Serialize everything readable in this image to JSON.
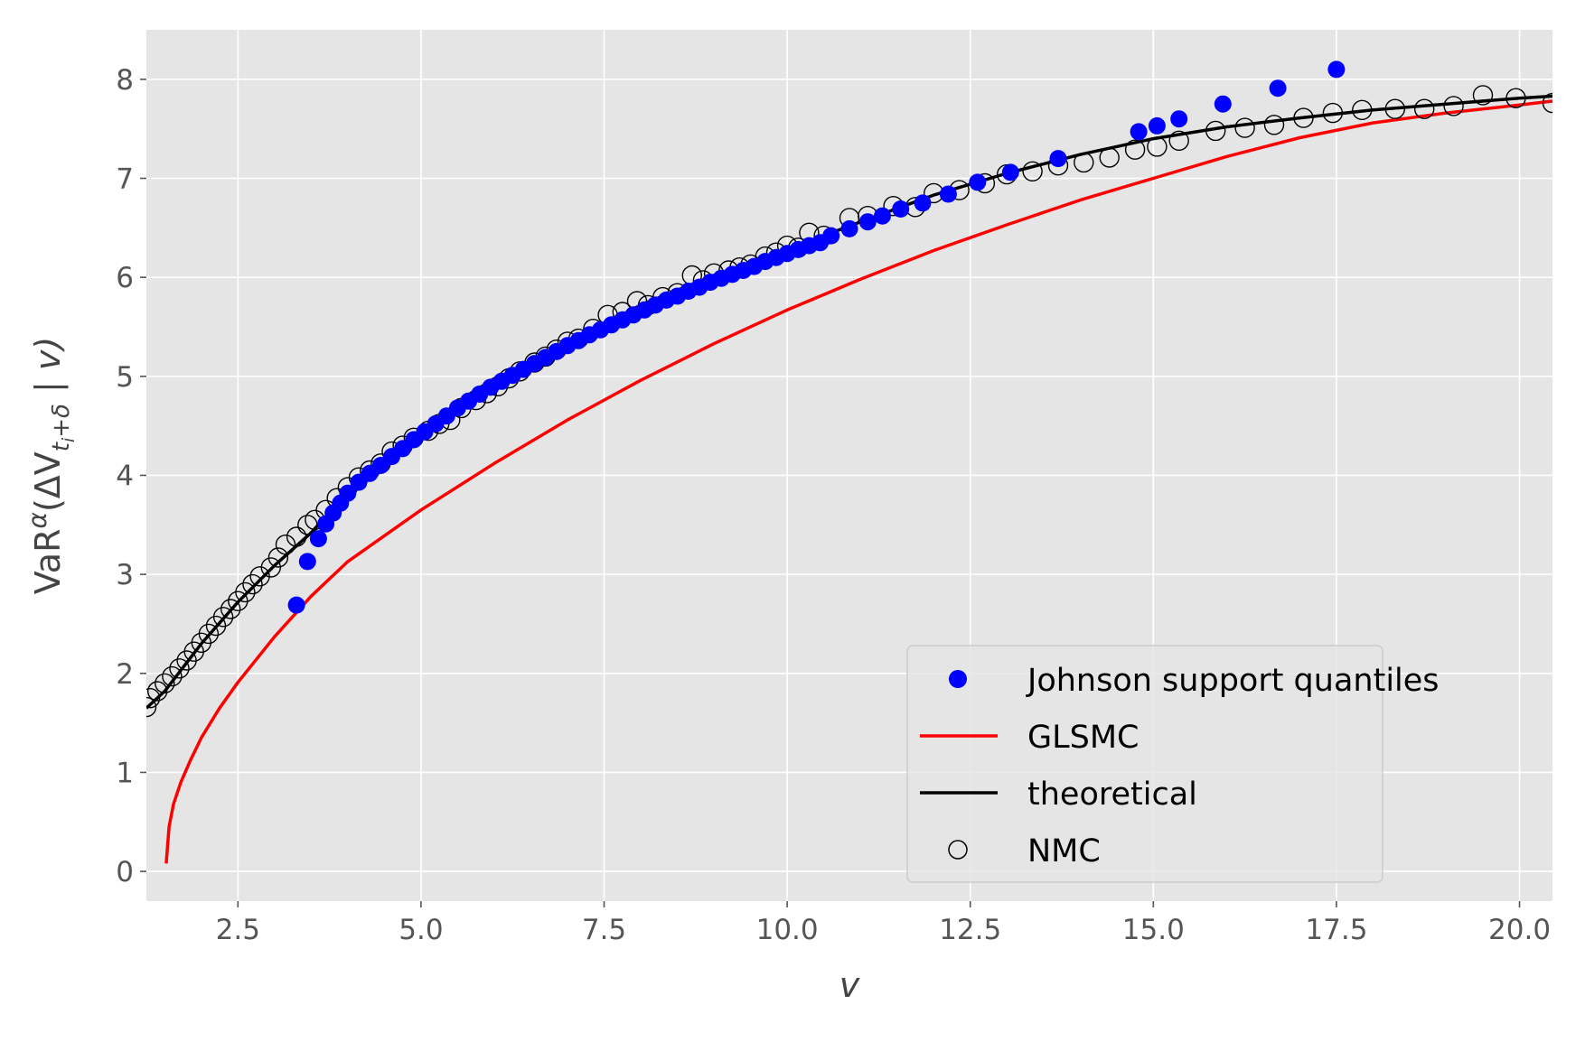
{
  "chart_data": {
    "type": "scatter",
    "xlabel": "v",
    "ylabel_parts": {
      "prefix": "VaR",
      "superscript": "α",
      "open": "(ΔV",
      "subscript_main": "t",
      "subscript_index": "i",
      "subscript_tail": "+δ",
      "close": " | v)"
    },
    "xlim": [
      1.25,
      20.45
    ],
    "ylim": [
      -0.3,
      8.5
    ],
    "x_ticks": [
      2.5,
      5.0,
      7.5,
      10.0,
      12.5,
      15.0,
      17.5,
      20.0
    ],
    "x_tick_labels": [
      "2.5",
      "5.0",
      "7.5",
      "10.0",
      "12.5",
      "15.0",
      "17.5",
      "20.0"
    ],
    "y_ticks": [
      0,
      1,
      2,
      3,
      4,
      5,
      6,
      7,
      8
    ],
    "y_tick_labels": [
      "0",
      "1",
      "2",
      "3",
      "4",
      "5",
      "6",
      "7",
      "8"
    ],
    "grid": true,
    "legend_position": "bottom-right",
    "series": [
      {
        "name": "Johnson support quantiles",
        "kind": "scatter-filled",
        "color": "#0000ff",
        "points": [
          [
            3.3,
            2.69
          ],
          [
            3.45,
            3.13
          ],
          [
            3.6,
            3.36
          ],
          [
            3.7,
            3.51
          ],
          [
            3.8,
            3.62
          ],
          [
            3.9,
            3.72
          ],
          [
            4.0,
            3.82
          ],
          [
            4.15,
            3.93
          ],
          [
            4.3,
            4.02
          ],
          [
            4.45,
            4.1
          ],
          [
            4.6,
            4.19
          ],
          [
            4.75,
            4.27
          ],
          [
            4.9,
            4.36
          ],
          [
            5.05,
            4.44
          ],
          [
            5.2,
            4.52
          ],
          [
            5.35,
            4.6
          ],
          [
            5.5,
            4.68
          ],
          [
            5.65,
            4.75
          ],
          [
            5.8,
            4.82
          ],
          [
            5.95,
            4.89
          ],
          [
            6.1,
            4.95
          ],
          [
            6.25,
            5.01
          ],
          [
            6.4,
            5.07
          ],
          [
            6.55,
            5.13
          ],
          [
            6.7,
            5.19
          ],
          [
            6.85,
            5.25
          ],
          [
            7.0,
            5.31
          ],
          [
            7.15,
            5.36
          ],
          [
            7.3,
            5.42
          ],
          [
            7.45,
            5.47
          ],
          [
            7.6,
            5.52
          ],
          [
            7.75,
            5.57
          ],
          [
            7.9,
            5.62
          ],
          [
            8.05,
            5.67
          ],
          [
            8.2,
            5.72
          ],
          [
            8.35,
            5.77
          ],
          [
            8.5,
            5.81
          ],
          [
            8.65,
            5.86
          ],
          [
            8.8,
            5.9
          ],
          [
            8.95,
            5.95
          ],
          [
            9.1,
            5.99
          ],
          [
            9.25,
            6.03
          ],
          [
            9.4,
            6.07
          ],
          [
            9.55,
            6.11
          ],
          [
            9.7,
            6.16
          ],
          [
            9.85,
            6.2
          ],
          [
            10.0,
            6.24
          ],
          [
            10.15,
            6.28
          ],
          [
            10.3,
            6.32
          ],
          [
            10.45,
            6.35
          ],
          [
            10.6,
            6.42
          ],
          [
            10.85,
            6.49
          ],
          [
            11.1,
            6.56
          ],
          [
            11.3,
            6.62
          ],
          [
            11.55,
            6.69
          ],
          [
            11.85,
            6.75
          ],
          [
            12.2,
            6.84
          ],
          [
            12.6,
            6.96
          ],
          [
            13.05,
            7.06
          ],
          [
            13.7,
            7.2
          ],
          [
            14.8,
            7.47
          ],
          [
            15.05,
            7.53
          ],
          [
            15.35,
            7.6
          ],
          [
            15.95,
            7.75
          ],
          [
            16.7,
            7.91
          ],
          [
            17.5,
            8.1
          ]
        ]
      },
      {
        "name": "GLSMC",
        "kind": "line",
        "color": "#ff0000",
        "points": [
          [
            1.52,
            0.08
          ],
          [
            1.56,
            0.45
          ],
          [
            1.62,
            0.68
          ],
          [
            1.72,
            0.9
          ],
          [
            1.85,
            1.12
          ],
          [
            2.0,
            1.35
          ],
          [
            2.25,
            1.65
          ],
          [
            2.5,
            1.91
          ],
          [
            3.0,
            2.37
          ],
          [
            3.5,
            2.78
          ],
          [
            4.0,
            3.13
          ],
          [
            5.0,
            3.65
          ],
          [
            6.0,
            4.12
          ],
          [
            7.0,
            4.56
          ],
          [
            8.0,
            4.96
          ],
          [
            9.0,
            5.33
          ],
          [
            10.0,
            5.67
          ],
          [
            11.0,
            5.98
          ],
          [
            12.0,
            6.27
          ],
          [
            13.0,
            6.53
          ],
          [
            14.0,
            6.78
          ],
          [
            15.0,
            7.0
          ],
          [
            16.0,
            7.22
          ],
          [
            17.0,
            7.41
          ],
          [
            18.0,
            7.56
          ],
          [
            19.0,
            7.66
          ],
          [
            20.0,
            7.74
          ],
          [
            20.45,
            7.78
          ]
        ]
      },
      {
        "name": "theoretical",
        "kind": "line",
        "color": "#000000",
        "points": [
          [
            1.25,
            1.65
          ],
          [
            1.5,
            1.82
          ],
          [
            2.0,
            2.3
          ],
          [
            2.5,
            2.72
          ],
          [
            3.0,
            3.09
          ],
          [
            3.5,
            3.42
          ],
          [
            4.0,
            3.83
          ],
          [
            4.5,
            4.12
          ],
          [
            5.0,
            4.4
          ],
          [
            6.0,
            4.88
          ],
          [
            7.0,
            5.33
          ],
          [
            8.0,
            5.72
          ],
          [
            9.0,
            6.02
          ],
          [
            10.0,
            6.28
          ],
          [
            11.0,
            6.56
          ],
          [
            12.0,
            6.83
          ],
          [
            13.0,
            7.05
          ],
          [
            14.0,
            7.24
          ],
          [
            15.0,
            7.4
          ],
          [
            16.0,
            7.52
          ],
          [
            17.0,
            7.61
          ],
          [
            18.0,
            7.69
          ],
          [
            19.0,
            7.75
          ],
          [
            20.0,
            7.81
          ],
          [
            20.45,
            7.83
          ]
        ]
      },
      {
        "name": "NMC",
        "kind": "scatter-open",
        "color": "#000000",
        "points": [
          [
            1.25,
            1.66
          ],
          [
            1.3,
            1.75
          ],
          [
            1.4,
            1.82
          ],
          [
            1.5,
            1.9
          ],
          [
            1.6,
            1.97
          ],
          [
            1.7,
            2.05
          ],
          [
            1.8,
            2.13
          ],
          [
            1.9,
            2.22
          ],
          [
            2.0,
            2.31
          ],
          [
            2.1,
            2.4
          ],
          [
            2.2,
            2.48
          ],
          [
            2.3,
            2.57
          ],
          [
            2.4,
            2.65
          ],
          [
            2.5,
            2.73
          ],
          [
            2.6,
            2.82
          ],
          [
            2.7,
            2.9
          ],
          [
            2.8,
            2.98
          ],
          [
            2.95,
            3.07
          ],
          [
            3.05,
            3.17
          ],
          [
            3.15,
            3.3
          ],
          [
            3.3,
            3.38
          ],
          [
            3.45,
            3.5
          ],
          [
            3.55,
            3.55
          ],
          [
            3.7,
            3.65
          ],
          [
            3.85,
            3.77
          ],
          [
            4.0,
            3.88
          ],
          [
            4.15,
            3.98
          ],
          [
            4.3,
            4.05
          ],
          [
            4.45,
            4.12
          ],
          [
            4.6,
            4.24
          ],
          [
            4.75,
            4.3
          ],
          [
            4.9,
            4.38
          ],
          [
            5.1,
            4.45
          ],
          [
            5.25,
            4.52
          ],
          [
            5.4,
            4.56
          ],
          [
            5.55,
            4.68
          ],
          [
            5.75,
            4.76
          ],
          [
            5.9,
            4.83
          ],
          [
            6.05,
            4.9
          ],
          [
            6.2,
            4.98
          ],
          [
            6.35,
            5.05
          ],
          [
            6.55,
            5.14
          ],
          [
            6.7,
            5.2
          ],
          [
            6.85,
            5.27
          ],
          [
            7.0,
            5.35
          ],
          [
            7.15,
            5.38
          ],
          [
            7.35,
            5.48
          ],
          [
            7.55,
            5.62
          ],
          [
            7.75,
            5.65
          ],
          [
            7.95,
            5.76
          ],
          [
            8.1,
            5.72
          ],
          [
            8.3,
            5.8
          ],
          [
            8.5,
            5.84
          ],
          [
            8.7,
            6.02
          ],
          [
            8.85,
            5.97
          ],
          [
            9.0,
            6.04
          ],
          [
            9.2,
            6.07
          ],
          [
            9.35,
            6.1
          ],
          [
            9.5,
            6.13
          ],
          [
            9.7,
            6.21
          ],
          [
            9.85,
            6.25
          ],
          [
            10.0,
            6.32
          ],
          [
            10.15,
            6.3
          ],
          [
            10.3,
            6.45
          ],
          [
            10.5,
            6.42
          ],
          [
            10.85,
            6.6
          ],
          [
            11.1,
            6.62
          ],
          [
            11.45,
            6.72
          ],
          [
            11.75,
            6.71
          ],
          [
            12.0,
            6.85
          ],
          [
            12.35,
            6.88
          ],
          [
            12.7,
            6.95
          ],
          [
            13.0,
            7.04
          ],
          [
            13.35,
            7.07
          ],
          [
            13.7,
            7.13
          ],
          [
            14.05,
            7.16
          ],
          [
            14.4,
            7.21
          ],
          [
            14.75,
            7.29
          ],
          [
            15.05,
            7.32
          ],
          [
            15.35,
            7.38
          ],
          [
            15.85,
            7.48
          ],
          [
            16.25,
            7.51
          ],
          [
            16.65,
            7.54
          ],
          [
            17.05,
            7.61
          ],
          [
            17.45,
            7.66
          ],
          [
            17.85,
            7.69
          ],
          [
            18.3,
            7.7
          ],
          [
            18.7,
            7.7
          ],
          [
            19.1,
            7.73
          ],
          [
            19.5,
            7.84
          ],
          [
            19.95,
            7.81
          ],
          [
            20.45,
            7.76
          ]
        ]
      }
    ]
  }
}
